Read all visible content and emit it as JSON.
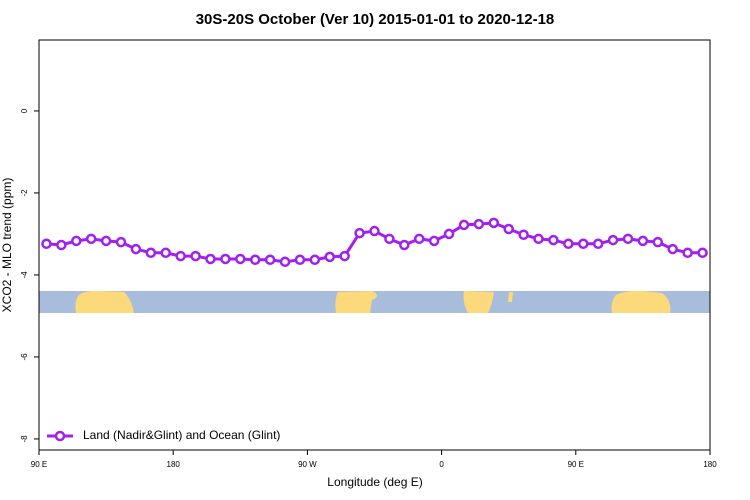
{
  "chart_data": {
    "type": "line",
    "title": "30S-20S October (Ver 10)   2015-01-01 to 2020-12-18",
    "x_label": "Longitude (deg E)",
    "y_label": "XCO2 - MLO trend (ppm)",
    "x": [
      95,
      105,
      115,
      125,
      135,
      145,
      155,
      165,
      175,
      185,
      195,
      205,
      215,
      225,
      235,
      245,
      255,
      265,
      275,
      285,
      295,
      305,
      315,
      325,
      335,
      345,
      355,
      365,
      375,
      385,
      395,
      405,
      415,
      425,
      435,
      445,
      455,
      465,
      475,
      485,
      495,
      505,
      515,
      525,
      535
    ],
    "series": [
      {
        "name": "Land (Nadir&Glint) and Ocean (Glint)",
        "color": "#a020f0",
        "values": [
          -3.24,
          -3.27,
          -3.17,
          -3.12,
          -3.17,
          -3.2,
          -3.37,
          -3.46,
          -3.46,
          -3.54,
          -3.54,
          -3.61,
          -3.61,
          -3.61,
          -3.63,
          -3.63,
          -3.68,
          -3.63,
          -3.63,
          -3.56,
          -3.54,
          -2.98,
          -2.93,
          -3.12,
          -3.27,
          -3.12,
          -3.17,
          -3.0,
          -2.78,
          -2.76,
          -2.73,
          -2.88,
          -3.02,
          -3.12,
          -3.15,
          -3.24,
          -3.24,
          -3.24,
          -3.15,
          -3.12,
          -3.17,
          -3.2,
          -3.37,
          -3.46,
          -3.46
        ]
      }
    ],
    "xlim": [
      90,
      540
    ],
    "xticks": [
      {
        "value": 90,
        "label": "90 E"
      },
      {
        "value": 180,
        "label": "180"
      },
      {
        "value": 270,
        "label": "90 W"
      },
      {
        "value": 360,
        "label": "0"
      },
      {
        "value": 450,
        "label": "90 E"
      },
      {
        "value": 540,
        "label": "180"
      }
    ],
    "ylim": [
      -8.27,
      1.73
    ],
    "yticks": [
      0,
      -2,
      -4,
      -6,
      -8
    ],
    "legend": "bottom-left"
  }
}
